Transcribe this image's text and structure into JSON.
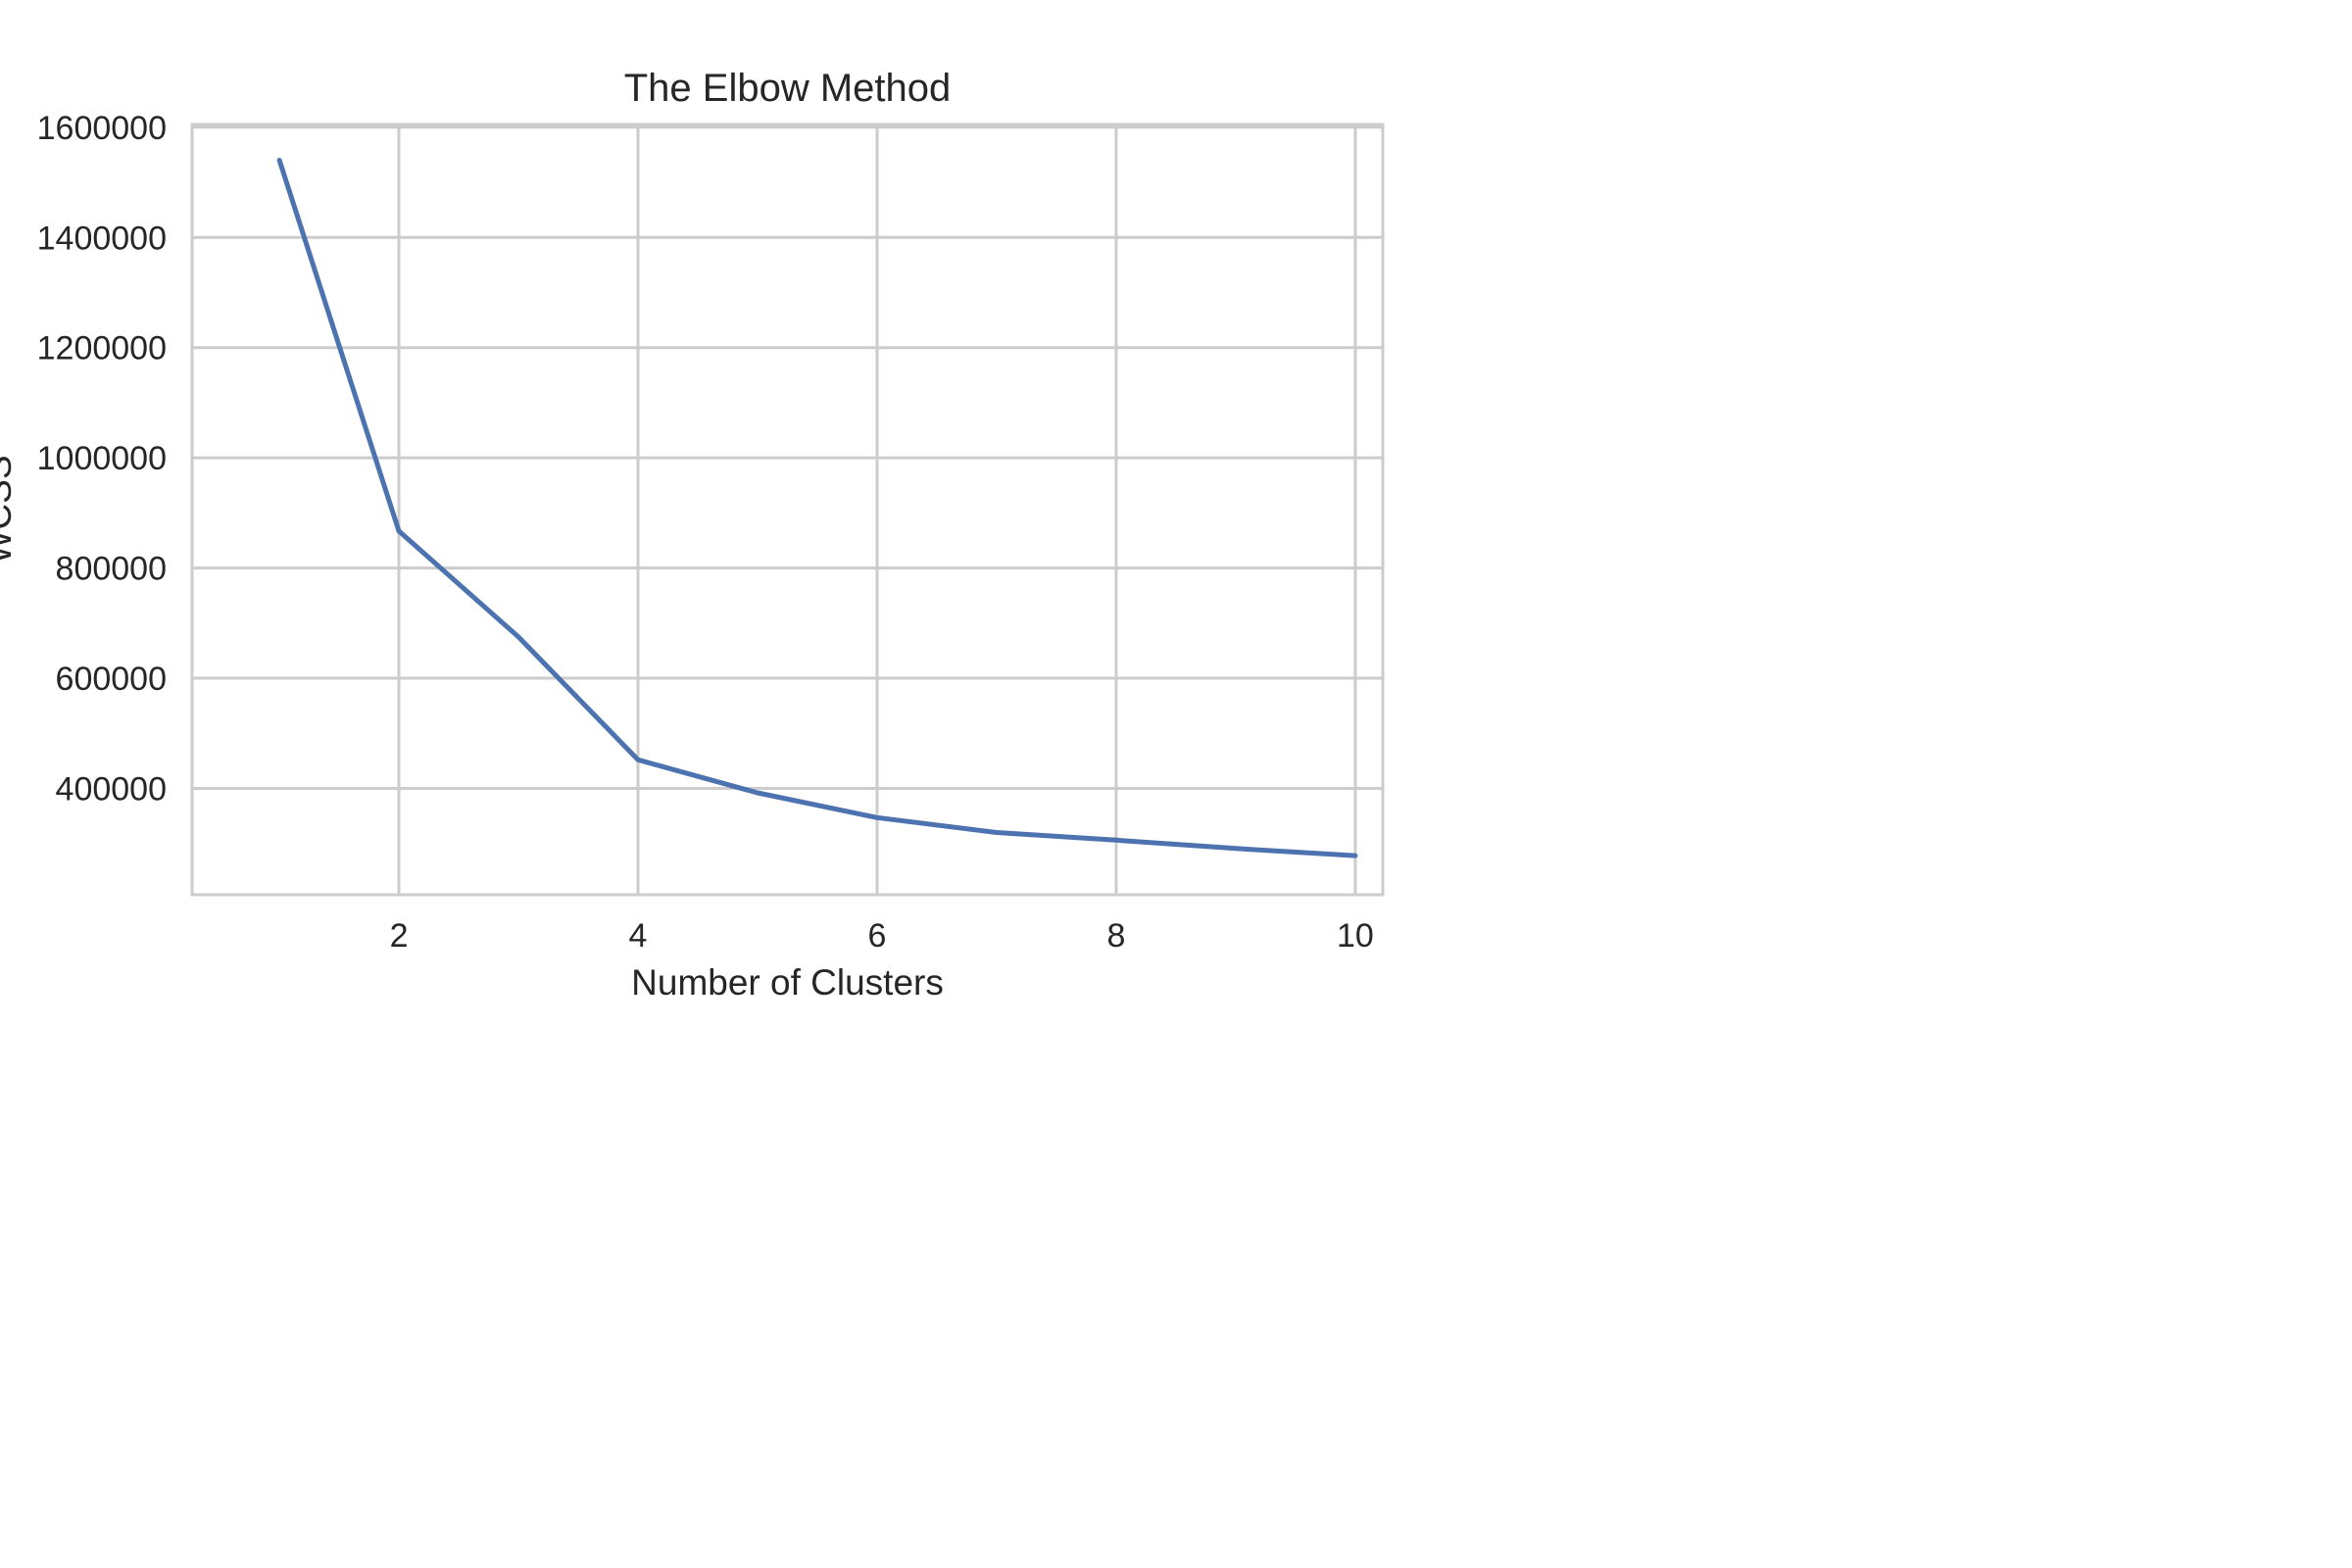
{
  "chart_data": {
    "type": "line",
    "title": "The Elbow Method",
    "xlabel": "Number of Clusters",
    "ylabel": "WCSS",
    "x": [
      1,
      2,
      3,
      4,
      5,
      6,
      7,
      8,
      9,
      10
    ],
    "series": [
      {
        "values": [
          1540000,
          867000,
          675000,
          452000,
          392000,
          347000,
          320000,
          306000,
          291000,
          278000
        ],
        "color": "#4c72b0"
      }
    ],
    "xlim": [
      0.27,
      10.23
    ],
    "ylim": [
      207000,
      1605000
    ],
    "xticks": [
      2,
      4,
      6,
      8,
      10
    ],
    "yticks": [
      400000,
      600000,
      800000,
      1000000,
      1200000,
      1400000,
      1600000
    ],
    "grid": true,
    "legend": "none"
  }
}
